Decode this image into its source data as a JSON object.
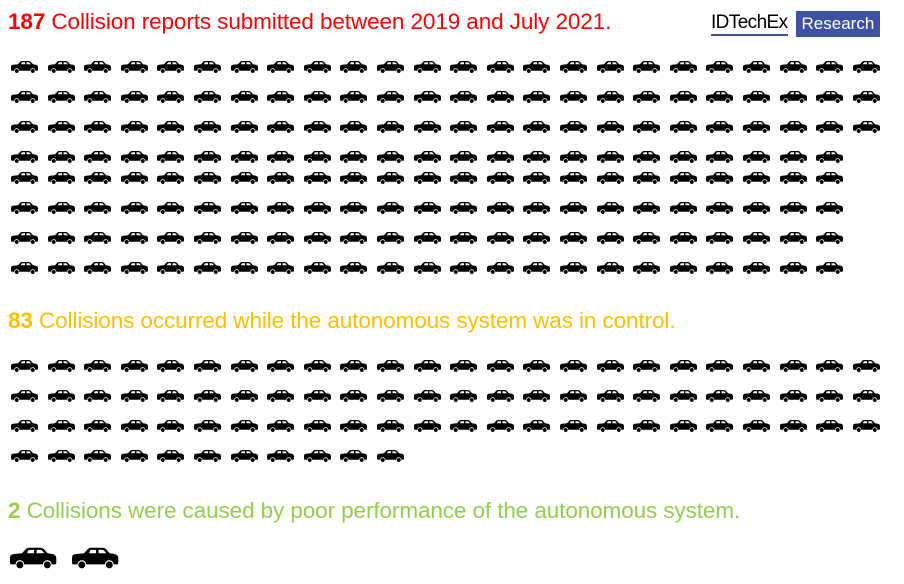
{
  "logo": {
    "brand": "IDTechEx",
    "tag": "Research",
    "color": "#3f51a3"
  },
  "sections": [
    {
      "count": "187",
      "text": "Collision reports submitted between 2019 and July 2021.",
      "color": "#ff0000",
      "icon": "car-icon",
      "rows": [
        24,
        24,
        24,
        23,
        23,
        23,
        23,
        23
      ]
    },
    {
      "count": "83",
      "text": "Collisions occurred while the autonomous system was in control.",
      "color": "#ffc000",
      "icon": "car-icon",
      "rows": [
        24,
        24,
        24,
        11
      ]
    },
    {
      "count": "2",
      "text": "Collisions were caused by poor performance of the autonomous system.",
      "color": "#92d050",
      "icon": "car-icon",
      "rows": [
        2
      ]
    }
  ]
}
